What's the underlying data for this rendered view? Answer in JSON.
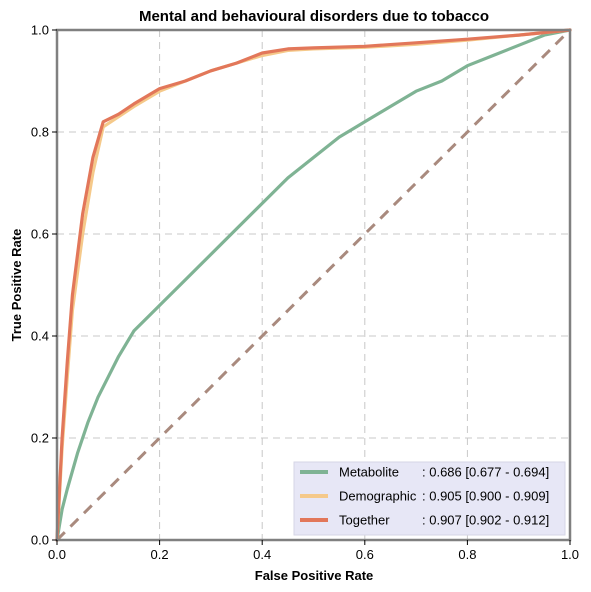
{
  "chart_data": {
    "type": "line",
    "title": "Mental and behavioural disorders due to tobacco",
    "xlabel": "False Positive Rate",
    "ylabel": "True Positive Rate",
    "xlim": [
      0,
      1
    ],
    "ylim": [
      0,
      1
    ],
    "xticks": [
      "0.0",
      "0.2",
      "0.4",
      "0.6",
      "0.8",
      "1.0"
    ],
    "yticks": [
      "0.0",
      "0.2",
      "0.4",
      "0.6",
      "0.8",
      "1.0"
    ],
    "grid": true,
    "legend_position": "bottom-right",
    "series": [
      {
        "name": "Metabolite",
        "auc_label": ": 0.686 [0.677 - 0.694]",
        "color": "#7fb394",
        "x": [
          0,
          0.01,
          0.02,
          0.04,
          0.06,
          0.08,
          0.1,
          0.12,
          0.15,
          0.18,
          0.2,
          0.25,
          0.3,
          0.35,
          0.4,
          0.45,
          0.5,
          0.55,
          0.6,
          0.65,
          0.7,
          0.75,
          0.8,
          0.85,
          0.9,
          0.95,
          1.0
        ],
        "y": [
          0,
          0.06,
          0.1,
          0.17,
          0.23,
          0.28,
          0.32,
          0.36,
          0.41,
          0.44,
          0.46,
          0.51,
          0.56,
          0.61,
          0.66,
          0.71,
          0.75,
          0.79,
          0.82,
          0.85,
          0.88,
          0.9,
          0.93,
          0.95,
          0.97,
          0.99,
          1.0
        ]
      },
      {
        "name": "Demographic",
        "auc_label": ": 0.905 [0.900 - 0.909]",
        "color": "#f5c98a",
        "x": [
          0,
          0.01,
          0.02,
          0.03,
          0.05,
          0.07,
          0.09,
          0.12,
          0.15,
          0.2,
          0.25,
          0.3,
          0.35,
          0.4,
          0.45,
          0.5,
          0.6,
          0.7,
          0.8,
          0.9,
          1.0
        ],
        "y": [
          0,
          0.18,
          0.32,
          0.45,
          0.6,
          0.72,
          0.81,
          0.83,
          0.85,
          0.88,
          0.9,
          0.92,
          0.935,
          0.95,
          0.96,
          0.963,
          0.966,
          0.972,
          0.98,
          0.99,
          1.0
        ]
      },
      {
        "name": "Together",
        "auc_label": ": 0.907 [0.902 - 0.912]",
        "color": "#e2775a",
        "x": [
          0,
          0.01,
          0.02,
          0.03,
          0.05,
          0.07,
          0.09,
          0.12,
          0.15,
          0.2,
          0.25,
          0.3,
          0.35,
          0.4,
          0.45,
          0.5,
          0.6,
          0.7,
          0.8,
          0.9,
          1.0
        ],
        "y": [
          0,
          0.2,
          0.35,
          0.48,
          0.64,
          0.75,
          0.82,
          0.835,
          0.855,
          0.885,
          0.9,
          0.92,
          0.935,
          0.955,
          0.963,
          0.965,
          0.968,
          0.975,
          0.982,
          0.99,
          1.0
        ]
      }
    ],
    "reference_line": {
      "x": [
        0,
        1
      ],
      "y": [
        0,
        1
      ],
      "color": "#a98a7e"
    }
  }
}
